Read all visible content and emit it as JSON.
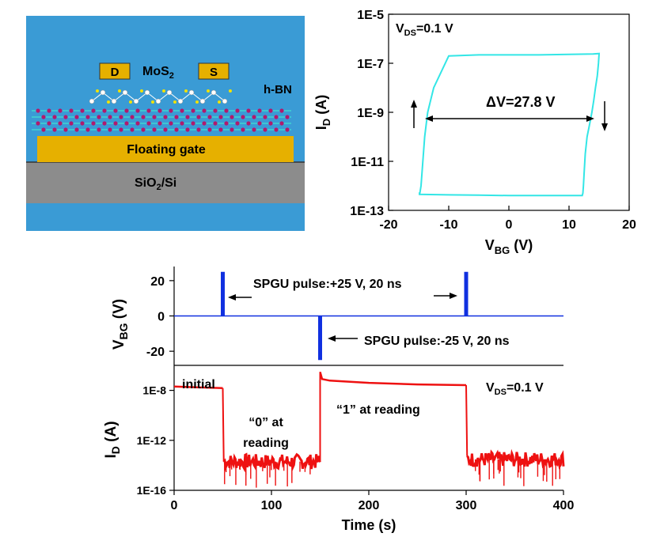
{
  "device": {
    "labels": {
      "drain": "D",
      "source": "S",
      "channel_main": "MoS",
      "channel_sub": "2",
      "dielectric": "h-BN",
      "gate": "Floating gate",
      "substrate_main": "SiO",
      "substrate_sub": "2",
      "substrate_tail": "/Si"
    },
    "colors": {
      "background": "#3a9bd5",
      "gate": "#e6b000",
      "substrate": "#8c8c8c",
      "hbn_atom": "#b01a6e",
      "electrode": "#e6b000"
    }
  },
  "chart_data": [
    {
      "type": "line",
      "scale": {
        "y": "log"
      },
      "color": "#33e6e6",
      "xlabel": {
        "main": "V",
        "sub": "BG",
        "tail": " (V)"
      },
      "ylabel": {
        "main": "I",
        "sub": "D",
        "tail": " (A)"
      },
      "xlim": [
        -20,
        20
      ],
      "ylim": [
        1e-13,
        1e-05
      ],
      "x_ticks": [
        "-20",
        "-10",
        "0",
        "10",
        "20"
      ],
      "y_ticks": [
        "1E-13",
        "1E-11",
        "1E-9",
        "1E-7",
        "1E-5"
      ],
      "annotations": {
        "vds": {
          "main": "V",
          "sub": "DS",
          "tail": "=0.1 V"
        },
        "delta": "ΔV=27.8 V"
      },
      "series": [
        {
          "x": [
            -15,
            -14.8,
            -14.6,
            -14.3,
            -14.0,
            -13.5,
            -12.5,
            -10,
            -5,
            0,
            5,
            10,
            14,
            15,
            15,
            14.9,
            14.7,
            14.4,
            14.1,
            13.8,
            13.4,
            13.0,
            12.7,
            12.5,
            12.4,
            12.3,
            12.2,
            10,
            5,
            0,
            -5,
            -10,
            -15
          ],
          "y": [
            5e-13,
            5e-13,
            1e-12,
            1e-11,
            1e-10,
            1e-09,
            1e-08,
            2e-07,
            2.2e-07,
            2.2e-07,
            2.2e-07,
            2.3e-07,
            2.4e-07,
            2.5e-07,
            2.5e-07,
            1e-07,
            3e-08,
            1e-08,
            3e-09,
            1e-09,
            3e-10,
            1e-10,
            2e-11,
            3e-12,
            1e-12,
            5e-13,
            4e-13,
            4e-13,
            4e-13,
            4e-13,
            4.2e-13,
            4.3e-13,
            4.5e-13
          ]
        }
      ]
    },
    {
      "type": "line",
      "color": "#1030e0",
      "ylabel": {
        "main": "V",
        "sub": "BG",
        "tail": " (V)"
      },
      "xlim": [
        0,
        400
      ],
      "ylim": [
        -28,
        28
      ],
      "y_ticks": [
        "20",
        "0",
        "-20"
      ],
      "y_tick_values": [
        20,
        0,
        -20
      ],
      "pulses": [
        {
          "x": 50,
          "y": 25
        },
        {
          "x": 150,
          "y": -25
        },
        {
          "x": 300,
          "y": 25
        }
      ],
      "annotations": {
        "pulse_pos": "SPGU pulse:+25 V, 20 ns",
        "pulse_neg": "SPGU pulse:-25 V, 20 ns"
      }
    },
    {
      "type": "line",
      "scale": {
        "y": "log"
      },
      "color": "#ee1111",
      "xlabel": "Time (s)",
      "ylabel": {
        "main": "I",
        "sub": "D",
        "tail": " (A)"
      },
      "xlim": [
        0,
        400
      ],
      "ylim": [
        1e-16,
        1e-06
      ],
      "x_ticks": [
        "0",
        "100",
        "200",
        "300",
        "400"
      ],
      "x_tick_values": [
        0,
        100,
        200,
        300,
        400
      ],
      "y_ticks": [
        "1E-8",
        "1E-12",
        "1E-16"
      ],
      "y_tick_values": [
        1e-08,
        1e-12,
        1e-16
      ],
      "annotations": {
        "initial": "initial",
        "zero_l1": "“0” at",
        "zero_l2": "reading",
        "one": "“1” at reading",
        "vds": {
          "main": "V",
          "sub": "DS",
          "tail": "=0.1 V"
        }
      },
      "segments": [
        {
          "name": "initial",
          "x": [
            0,
            50
          ],
          "y": [
            2e-08,
            1.5e-08
          ]
        },
        {
          "name": "state-0",
          "x": [
            51,
            150
          ],
          "y": [
            2e-14,
            2e-14
          ],
          "noisy": true
        },
        {
          "name": "state-1",
          "x": [
            150,
            152,
            160,
            200,
            250,
            300
          ],
          "y": [
            3e-07,
            8e-08,
            6e-08,
            4e-08,
            3e-08,
            2.6e-08
          ]
        },
        {
          "name": "state-0b",
          "x": [
            301,
            400
          ],
          "y": [
            3e-14,
            3e-14
          ],
          "noisy": true
        }
      ]
    }
  ]
}
